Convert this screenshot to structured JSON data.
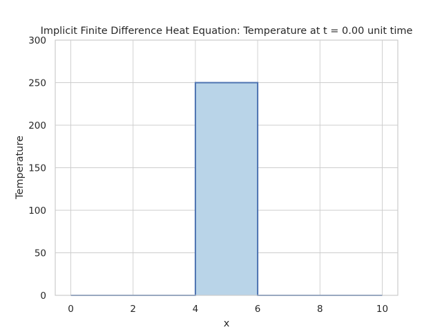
{
  "chart_data": {
    "type": "area",
    "title": "Implicit Finite Difference Heat Equation: Temperature at t = 0.00 unit time",
    "xlabel": "x",
    "ylabel": "Temperature",
    "xlim": [
      -0.5,
      10.5
    ],
    "ylim": [
      0,
      300
    ],
    "xticks": [
      0,
      2,
      4,
      6,
      8,
      10
    ],
    "yticks": [
      0,
      50,
      100,
      150,
      200,
      250,
      300
    ],
    "grid": true,
    "legend": "none",
    "series": [
      {
        "x": [
          0,
          4,
          4,
          6,
          6,
          10
        ],
        "y": [
          0,
          0,
          250,
          250,
          0,
          0
        ],
        "line_color": "#4c72b0",
        "fill_color": "#b9d4e8"
      }
    ]
  }
}
